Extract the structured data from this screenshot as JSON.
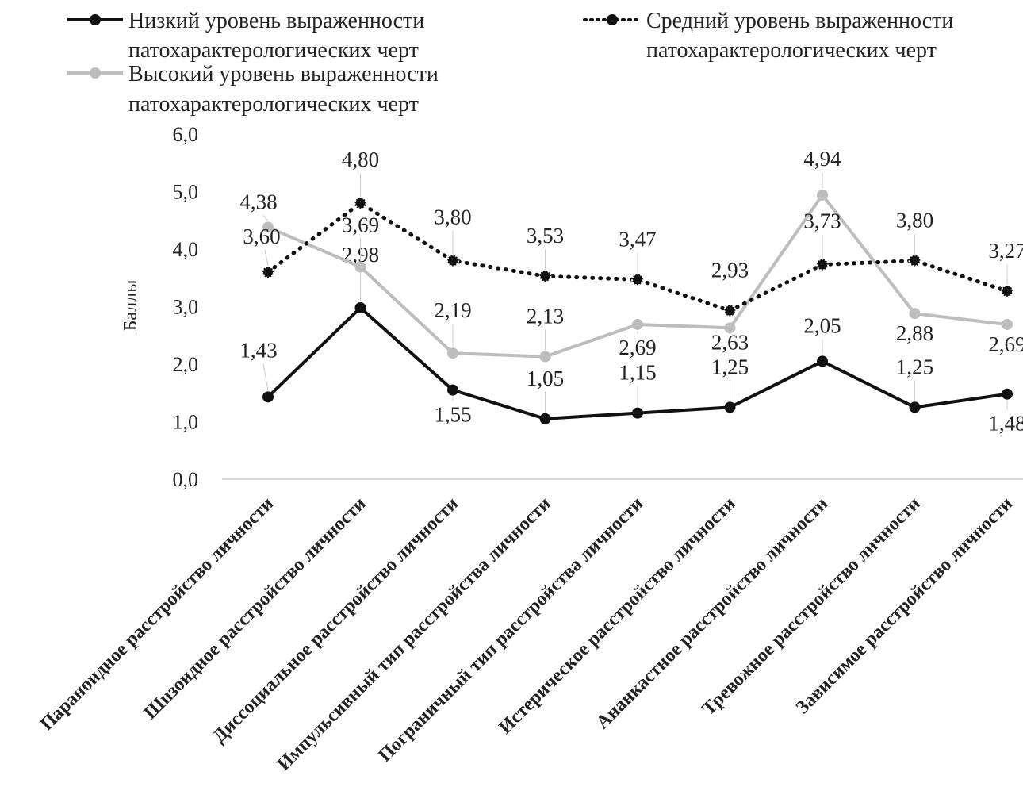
{
  "chart_data": {
    "type": "line",
    "ylabel": "Баллы",
    "ylim": [
      0,
      6
    ],
    "yticks": [
      "0,0",
      "1,0",
      "2,0",
      "3,0",
      "4,0",
      "5,0",
      "6,0"
    ],
    "grid": false,
    "legend_position": "top",
    "categories": [
      "Параноидное расстройство личности",
      "Шизоидное расстройство личности",
      "Диссоциальное расстройство личности",
      "Импульсивный тип расстройства личности",
      "Пограничный тип расстройства личности",
      "Истерическое расстройство личности",
      "Ананкастное расстройство личности",
      "Тревожное расстройство личности",
      "Зависимое расстройство личности"
    ],
    "series": [
      {
        "name": "Низкий уровень выраженности патохарактерологических черт",
        "legend_lines": [
          "Низкий уровень выраженности",
          "патохарактерологических черт"
        ],
        "color": "#111111",
        "style": "solid",
        "values": [
          1.43,
          2.98,
          1.55,
          1.05,
          1.15,
          1.25,
          2.05,
          1.25,
          1.48
        ],
        "labels": [
          "1,43",
          "2,98",
          "1,55",
          "1,05",
          "1,15",
          "1,25",
          "2,05",
          "1,25",
          "1,48"
        ]
      },
      {
        "name": "Средний уровень выраженности патохарактерологических черт",
        "legend_lines": [
          "Средний уровень выраженности",
          "патохарактерологических черт"
        ],
        "color": "#111111",
        "style": "dotted",
        "values": [
          3.6,
          4.8,
          3.8,
          3.53,
          3.47,
          2.93,
          3.73,
          3.8,
          3.27
        ],
        "labels": [
          "3,60",
          "4,80",
          "3,80",
          "3,53",
          "3,47",
          "2,93",
          "3,73",
          "3,80",
          "3,27"
        ]
      },
      {
        "name": "Высокий уровень выраженности патохарактерологических черт",
        "legend_lines": [
          "Высокий  уровень выраженности",
          "патохарактерологических черт"
        ],
        "color": "#bdbdbd",
        "style": "solid",
        "values": [
          4.38,
          3.69,
          2.19,
          2.13,
          2.69,
          2.63,
          4.94,
          2.88,
          2.69
        ],
        "labels": [
          "4,38",
          "3,69",
          "2,19",
          "2,13",
          "2,69",
          "2,63",
          "4,94",
          "2,88",
          "2,69"
        ]
      }
    ]
  }
}
